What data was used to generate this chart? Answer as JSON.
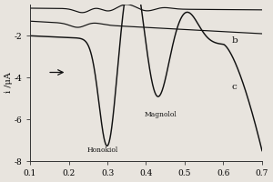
{
  "title": "",
  "xlabel": "",
  "ylabel": "i /μA",
  "xlim": [
    0.1,
    0.7
  ],
  "ylim": [
    -8,
    -0.5
  ],
  "yticks": [
    -8,
    -6,
    -4,
    -2
  ],
  "xticks": [
    0.1,
    0.2,
    0.3,
    0.4,
    0.5,
    0.6,
    0.7
  ],
  "label_b": "b",
  "label_c": "c",
  "honokiol_label": "Honokiol",
  "magnolol_label": "Magnolol",
  "bg_color": "#e8e4de",
  "line_color": "#111111"
}
